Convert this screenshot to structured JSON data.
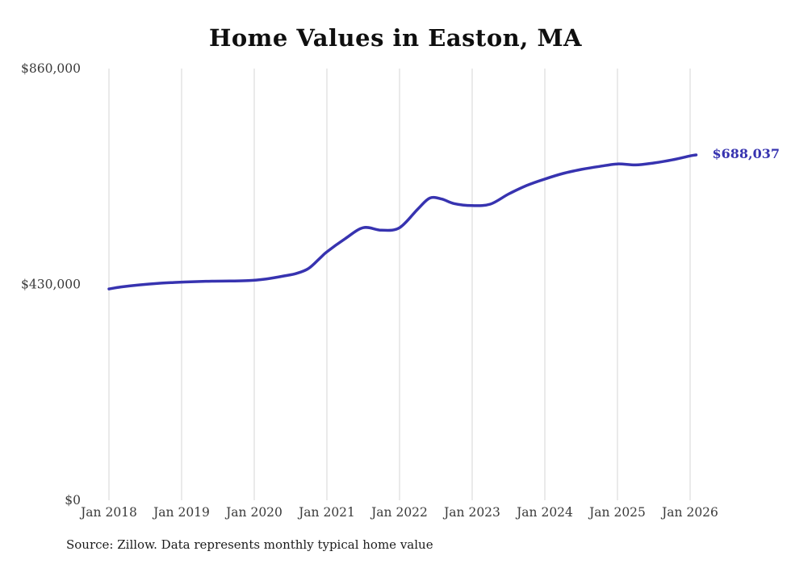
{
  "chart_data": {
    "type": "line",
    "title": "Home Values in Easton, MA",
    "source": "Source: Zillow. Data represents monthly typical home value",
    "end_label": "$688,037",
    "end_value": 688037,
    "line_color": "#3733b0",
    "grid_color": "#d6d6d6",
    "tick_color": "#3a3a3a",
    "grid": "vertical-only",
    "legend": "none",
    "ylim": [
      0,
      860000
    ],
    "x_ticks": [
      "Jan 2018",
      "Jan 2019",
      "Jan 2020",
      "Jan 2021",
      "Jan 2022",
      "Jan 2023",
      "Jan 2024",
      "Jan 2025",
      "Jan 2026"
    ],
    "y_ticks": [
      {
        "label": "$0",
        "value": 0
      },
      {
        "label": "$430,000",
        "value": 430000
      },
      {
        "label": "$860,000",
        "value": 860000
      }
    ],
    "series": [
      {
        "name": "Typical home value",
        "points": [
          [
            "2018-01",
            421000
          ],
          [
            "2018-03",
            425000
          ],
          [
            "2018-06",
            429000
          ],
          [
            "2018-09",
            432000
          ],
          [
            "2018-12",
            434000
          ],
          [
            "2019-03",
            435500
          ],
          [
            "2019-06",
            436500
          ],
          [
            "2019-09",
            436800
          ],
          [
            "2019-12",
            437500
          ],
          [
            "2020-03",
            441000
          ],
          [
            "2020-06",
            447000
          ],
          [
            "2020-08",
            452000
          ],
          [
            "2020-10",
            462000
          ],
          [
            "2020-12",
            484000
          ],
          [
            "2021-01",
            495000
          ],
          [
            "2021-04",
            521000
          ],
          [
            "2021-07",
            543000
          ],
          [
            "2021-10",
            538000
          ],
          [
            "2022-01",
            543000
          ],
          [
            "2022-04",
            580000
          ],
          [
            "2022-06",
            602000
          ],
          [
            "2022-08",
            600000
          ],
          [
            "2022-10",
            591000
          ],
          [
            "2023-01",
            587000
          ],
          [
            "2023-04",
            590000
          ],
          [
            "2023-07",
            610000
          ],
          [
            "2023-10",
            627000
          ],
          [
            "2024-01",
            640000
          ],
          [
            "2024-04",
            651000
          ],
          [
            "2024-07",
            659000
          ],
          [
            "2024-10",
            665000
          ],
          [
            "2025-01",
            670000
          ],
          [
            "2025-04",
            668000
          ],
          [
            "2025-07",
            672000
          ],
          [
            "2025-10",
            678000
          ],
          [
            "2026-01",
            686000
          ],
          [
            "2026-02",
            688037
          ]
        ]
      }
    ]
  }
}
